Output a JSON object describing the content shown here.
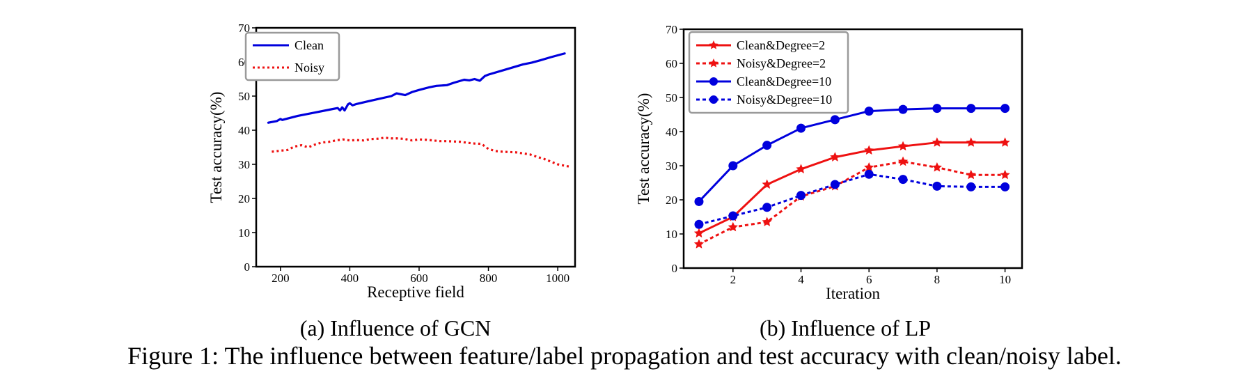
{
  "chart_data": [
    {
      "type": "line",
      "xlabel": "Receptive field",
      "ylabel": "Test accuracy(%)",
      "xlim": [
        130,
        1050
      ],
      "ylim": [
        0,
        70
      ],
      "xticks": [
        200,
        400,
        600,
        800,
        1000
      ],
      "yticks": [
        0,
        10,
        20,
        30,
        40,
        50,
        60,
        70
      ],
      "grid": false,
      "legend_position": "top-left",
      "series": [
        {
          "name": "Clean",
          "style": "solid",
          "color": "#0000dd",
          "x": [
            165,
            190,
            200,
            205,
            212,
            250,
            300,
            350,
            365,
            372,
            378,
            385,
            395,
            400,
            408,
            420,
            450,
            480,
            520,
            535,
            550,
            560,
            580,
            600,
            630,
            650,
            680,
            700,
            730,
            745,
            760,
            775,
            790,
            800,
            850,
            900,
            925,
            950,
            980,
            1020
          ],
          "y": [
            42.2,
            42.7,
            43.3,
            43.0,
            43.2,
            44.2,
            45.2,
            46.2,
            46.5,
            45.8,
            46.7,
            45.8,
            47.6,
            47.9,
            47.3,
            47.7,
            48.4,
            49.1,
            50.0,
            50.8,
            50.5,
            50.3,
            51.2,
            51.8,
            52.6,
            53.0,
            53.2,
            53.9,
            54.8,
            54.6,
            55.0,
            54.5,
            55.9,
            56.3,
            57.8,
            59.3,
            59.8,
            60.5,
            61.4,
            62.5
          ]
        },
        {
          "name": "Noisy",
          "style": "dotted",
          "color": "#ee1111",
          "x": [
            175,
            200,
            220,
            240,
            260,
            280,
            300,
            320,
            340,
            360,
            380,
            400,
            420,
            440,
            460,
            480,
            500,
            520,
            540,
            560,
            580,
            600,
            620,
            640,
            660,
            680,
            700,
            720,
            740,
            760,
            780,
            800,
            820,
            840,
            860,
            880,
            900,
            920,
            940,
            960,
            980,
            1000,
            1020,
            1035
          ],
          "y": [
            33.7,
            34.0,
            34.2,
            35.2,
            35.6,
            35.0,
            35.8,
            36.4,
            36.6,
            37.0,
            37.3,
            37.0,
            37.1,
            37.0,
            37.4,
            37.5,
            37.8,
            37.6,
            37.6,
            37.4,
            37.0,
            37.3,
            37.2,
            37.0,
            36.8,
            36.8,
            36.7,
            36.6,
            36.3,
            36.1,
            36.0,
            34.5,
            33.9,
            33.7,
            33.6,
            33.5,
            33.2,
            32.9,
            32.2,
            31.6,
            30.8,
            30.0,
            29.6,
            29.3
          ]
        }
      ]
    },
    {
      "type": "line",
      "xlabel": "Iteration",
      "ylabel": "Test accuracy(%)",
      "xlim": [
        0.55,
        10.5
      ],
      "ylim": [
        0,
        70
      ],
      "xticks": [
        2,
        4,
        6,
        8,
        10
      ],
      "yticks": [
        0,
        10,
        20,
        30,
        40,
        50,
        60,
        70
      ],
      "grid": false,
      "legend_position": "top-left",
      "x": [
        1,
        2,
        3,
        4,
        5,
        6,
        7,
        8,
        9,
        10
      ],
      "series": [
        {
          "name": "Clean&Degree=2",
          "style": "solid",
          "marker": "star",
          "color": "#ee1111",
          "values": [
            10.2,
            15.0,
            24.5,
            29.0,
            32.5,
            34.5,
            35.7,
            36.8,
            36.8,
            36.8
          ]
        },
        {
          "name": "Noisy&Degree=2",
          "style": "dotted",
          "marker": "star",
          "color": "#ee1111",
          "values": [
            7.0,
            12.0,
            13.5,
            21.0,
            24.0,
            29.5,
            31.2,
            29.5,
            27.3,
            27.3
          ]
        },
        {
          "name": "Clean&Degree=10",
          "style": "solid",
          "marker": "circle",
          "color": "#0000dd",
          "values": [
            19.5,
            30.0,
            36.0,
            41.0,
            43.5,
            46.0,
            46.5,
            46.8,
            46.8,
            46.8
          ]
        },
        {
          "name": "Noisy&Degree=10",
          "style": "dotted",
          "marker": "circle",
          "color": "#0000dd",
          "values": [
            12.8,
            15.3,
            17.8,
            21.3,
            24.5,
            27.5,
            26.0,
            24.0,
            23.8,
            23.8
          ]
        }
      ]
    }
  ],
  "subcaptions": {
    "a": "(a)  Influence of GCN",
    "b": "(b)  Influence of LP"
  },
  "caption": "Figure 1: The influence between feature/label propagation and test accuracy with clean/noisy label."
}
